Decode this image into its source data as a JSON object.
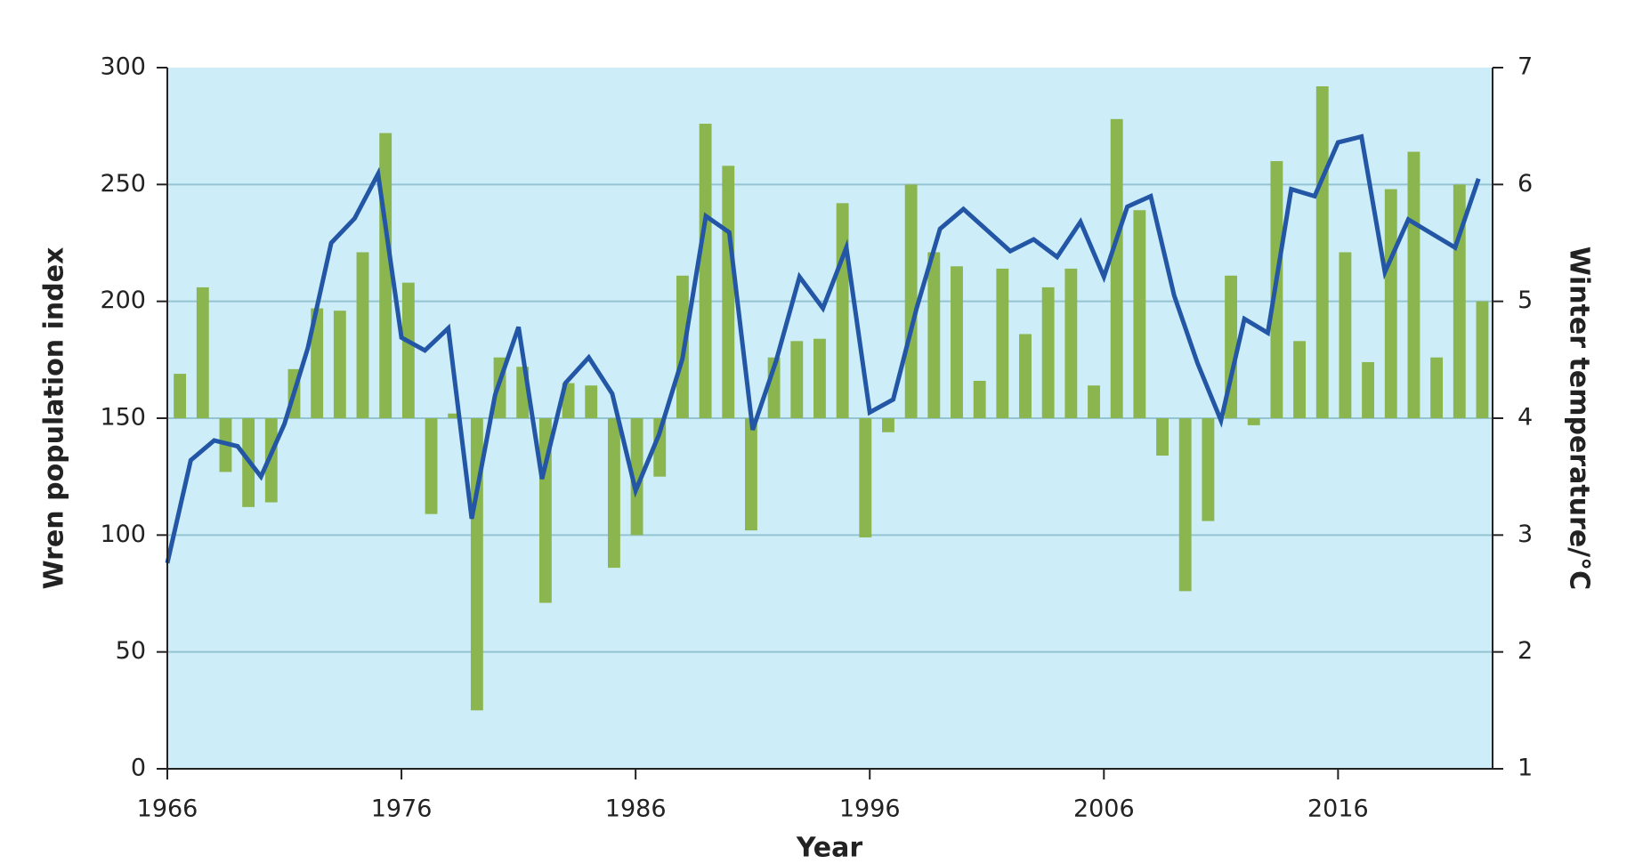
{
  "chart_data": {
    "type": "combo",
    "xlabel": "Year",
    "ylabel": "Wren population index",
    "y2label": "Winter temperature/°C",
    "xlim": [
      1966,
      2022.6
    ],
    "xticks": [
      1966,
      1976,
      1986,
      1996,
      2006,
      2016
    ],
    "ylim": [
      0,
      300
    ],
    "yticks": [
      0,
      50,
      100,
      150,
      200,
      250,
      300
    ],
    "y2lim": [
      1,
      7
    ],
    "y2ticks": [
      1,
      2,
      3,
      4,
      5,
      6,
      7
    ],
    "grid": true,
    "background": "#cdeef8",
    "bar_baseline": 150,
    "series": [
      {
        "type": "bar",
        "color": "#8bb54f",
        "x": [
          1966,
          1967,
          1968,
          1969,
          1970,
          1971,
          1972,
          1973,
          1974,
          1975,
          1976,
          1977,
          1978,
          1979,
          1980,
          1981,
          1982,
          1983,
          1984,
          1985,
          1986,
          1987,
          1988,
          1989,
          1990,
          1991,
          1992,
          1993,
          1994,
          1995,
          1996,
          1997,
          1998,
          1999,
          2000,
          2001,
          2002,
          2003,
          2004,
          2005,
          2006,
          2007,
          2008,
          2009,
          2010,
          2011,
          2012,
          2013,
          2014,
          2015,
          2016,
          2017,
          2018,
          2019,
          2020,
          2021,
          2022,
          2023
        ],
        "values": [
          169,
          206,
          127,
          112,
          114,
          171,
          197,
          196,
          221,
          272,
          208,
          109,
          152,
          25,
          176,
          172,
          71,
          165,
          164,
          86,
          100,
          125,
          211,
          276,
          258,
          102,
          176,
          183,
          184,
          242,
          99,
          144,
          250,
          221,
          215,
          166,
          214,
          186,
          206,
          214,
          164,
          278,
          239,
          134,
          76,
          106,
          211,
          147,
          260,
          183,
          292,
          221,
          174,
          248,
          264,
          176,
          250,
          200
        ]
      },
      {
        "type": "line",
        "axis": "y2",
        "color": "#2456a6",
        "x": [
          1966,
          1967,
          1968,
          1969,
          1970,
          1971,
          1972,
          1973,
          1974,
          1975,
          1976,
          1977,
          1978,
          1979,
          1980,
          1981,
          1982,
          1983,
          1984,
          1985,
          1986,
          1987,
          1988,
          1989,
          1990,
          1991,
          1992,
          1993,
          1994,
          1995,
          1996,
          1997,
          1998,
          1999,
          2000,
          2001,
          2002,
          2003,
          2004,
          2005,
          2006,
          2007,
          2008,
          2009,
          2010,
          2011,
          2012,
          2013,
          2014,
          2015,
          2016,
          2017,
          2018,
          2019,
          2020,
          2021,
          2022
        ],
        "values": [
          2.76,
          3.64,
          3.81,
          3.76,
          3.5,
          3.95,
          4.6,
          5.5,
          5.71,
          6.09,
          4.69,
          4.58,
          4.77,
          3.14,
          4.2,
          4.78,
          3.48,
          4.3,
          4.52,
          4.21,
          3.38,
          3.86,
          4.51,
          5.73,
          5.59,
          3.9,
          4.49,
          5.21,
          4.94,
          5.46,
          4.05,
          4.16,
          4.94,
          5.62,
          5.79,
          5.61,
          5.43,
          5.53,
          5.38,
          5.68,
          5.21,
          5.81,
          5.9,
          5.05,
          4.47,
          3.98,
          4.85,
          4.73,
          5.96,
          5.9,
          6.36,
          6.41,
          5.25,
          5.7,
          5.58,
          5.46,
          6.05
        ]
      }
    ]
  }
}
